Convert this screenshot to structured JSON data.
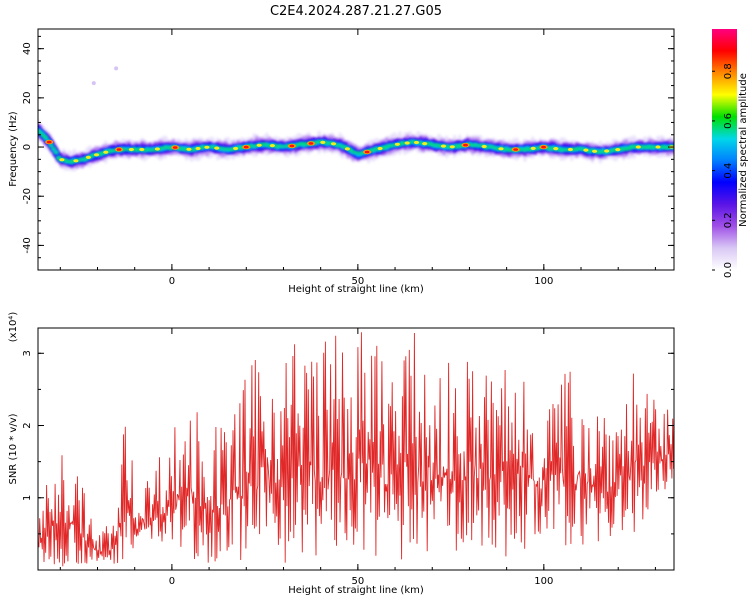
{
  "title": "C2E4.2024.287.21.27.G05",
  "chart_data": [
    {
      "type": "heatmap",
      "xlabel": "Height of straight line (km)",
      "ylabel": "Frequency (Hz)",
      "xlim": [
        -36,
        135
      ],
      "ylim": [
        -50,
        48
      ],
      "xticks": [
        0,
        50,
        100
      ],
      "yticks": [
        -40,
        -20,
        0,
        20,
        40
      ],
      "colorbar": {
        "label": "Normalized spectral amplitude",
        "range": [
          0,
          0.97
        ],
        "ticks": [
          0.0,
          0.2,
          0.4,
          0.6,
          0.8
        ],
        "tick_labels": [
          "0.0",
          "0.2",
          "0.4",
          "0.6",
          "0.8"
        ],
        "colormap": [
          "#ffffff",
          "#d9c8f5",
          "#a050e6",
          "#5a14e6",
          "#0000ff",
          "#0080ff",
          "#00d8e8",
          "#00e000",
          "#ffff00",
          "#ff8800",
          "#ff0000",
          "#ff0080"
        ]
      },
      "ridge": {
        "x": [
          -36,
          -33,
          -30,
          -27,
          -24,
          -20,
          -15,
          -10,
          -5,
          0,
          5,
          10,
          15,
          20,
          25,
          30,
          35,
          40,
          45,
          50,
          55,
          60,
          65,
          70,
          75,
          80,
          85,
          90,
          95,
          100,
          105,
          110,
          115,
          120,
          125,
          130,
          135
        ],
        "frequency": [
          7,
          2,
          -5,
          -6,
          -5,
          -3,
          -1,
          -1,
          -1,
          0,
          -1,
          0,
          -1,
          0,
          1,
          0,
          1,
          2,
          1,
          -3,
          -1,
          1,
          2,
          1,
          0,
          1,
          0,
          -1,
          -1,
          0,
          -1,
          -1,
          -2,
          -1,
          0,
          0,
          0
        ]
      },
      "outliers": [
        {
          "x": -21,
          "frequency": 26
        },
        {
          "x": -15,
          "frequency": 32
        }
      ]
    },
    {
      "type": "line",
      "xlabel": "Height of straight line (km)",
      "ylabel": "SNR (10 * v/v)",
      "y_multiplier": "(x10⁴)",
      "xlim": [
        -36,
        135
      ],
      "ylim": [
        0,
        3.35
      ],
      "xticks": [
        0,
        50,
        100
      ],
      "yticks": [
        1,
        2,
        3
      ],
      "line_color": "#e02828",
      "envelope": {
        "x": [
          -36,
          -30,
          -25,
          -20,
          -15,
          -12,
          -10,
          -5,
          0,
          5,
          10,
          15,
          20,
          25,
          30,
          35,
          40,
          45,
          50,
          55,
          60,
          65,
          70,
          75,
          80,
          85,
          90,
          95,
          100,
          105,
          110,
          115,
          120,
          125,
          130,
          135
        ],
        "min": [
          0.05,
          0.05,
          0.05,
          0.02,
          0.05,
          0.2,
          0.3,
          0.3,
          0.2,
          0.15,
          0.1,
          0.15,
          0.1,
          0.1,
          0.1,
          0.1,
          0.1,
          0.1,
          0.1,
          0.1,
          0.1,
          0.1,
          0.2,
          0.2,
          0.3,
          0.3,
          0.1,
          0.2,
          0.3,
          0.3,
          0.3,
          0.3,
          0.3,
          0.4,
          1.0,
          1.2
        ],
        "max": [
          0.8,
          1.8,
          1.4,
          0.5,
          0.8,
          2.6,
          1.0,
          1.5,
          2.0,
          2.5,
          2.0,
          2.1,
          2.8,
          3.1,
          3.3,
          3.3,
          3.3,
          3.3,
          3.35,
          3.3,
          3.1,
          3.3,
          2.9,
          2.9,
          3.0,
          2.8,
          3.0,
          3.0,
          2.5,
          2.8,
          2.8,
          2.5,
          2.6,
          3.0,
          2.3,
          2.2
        ]
      }
    }
  ]
}
